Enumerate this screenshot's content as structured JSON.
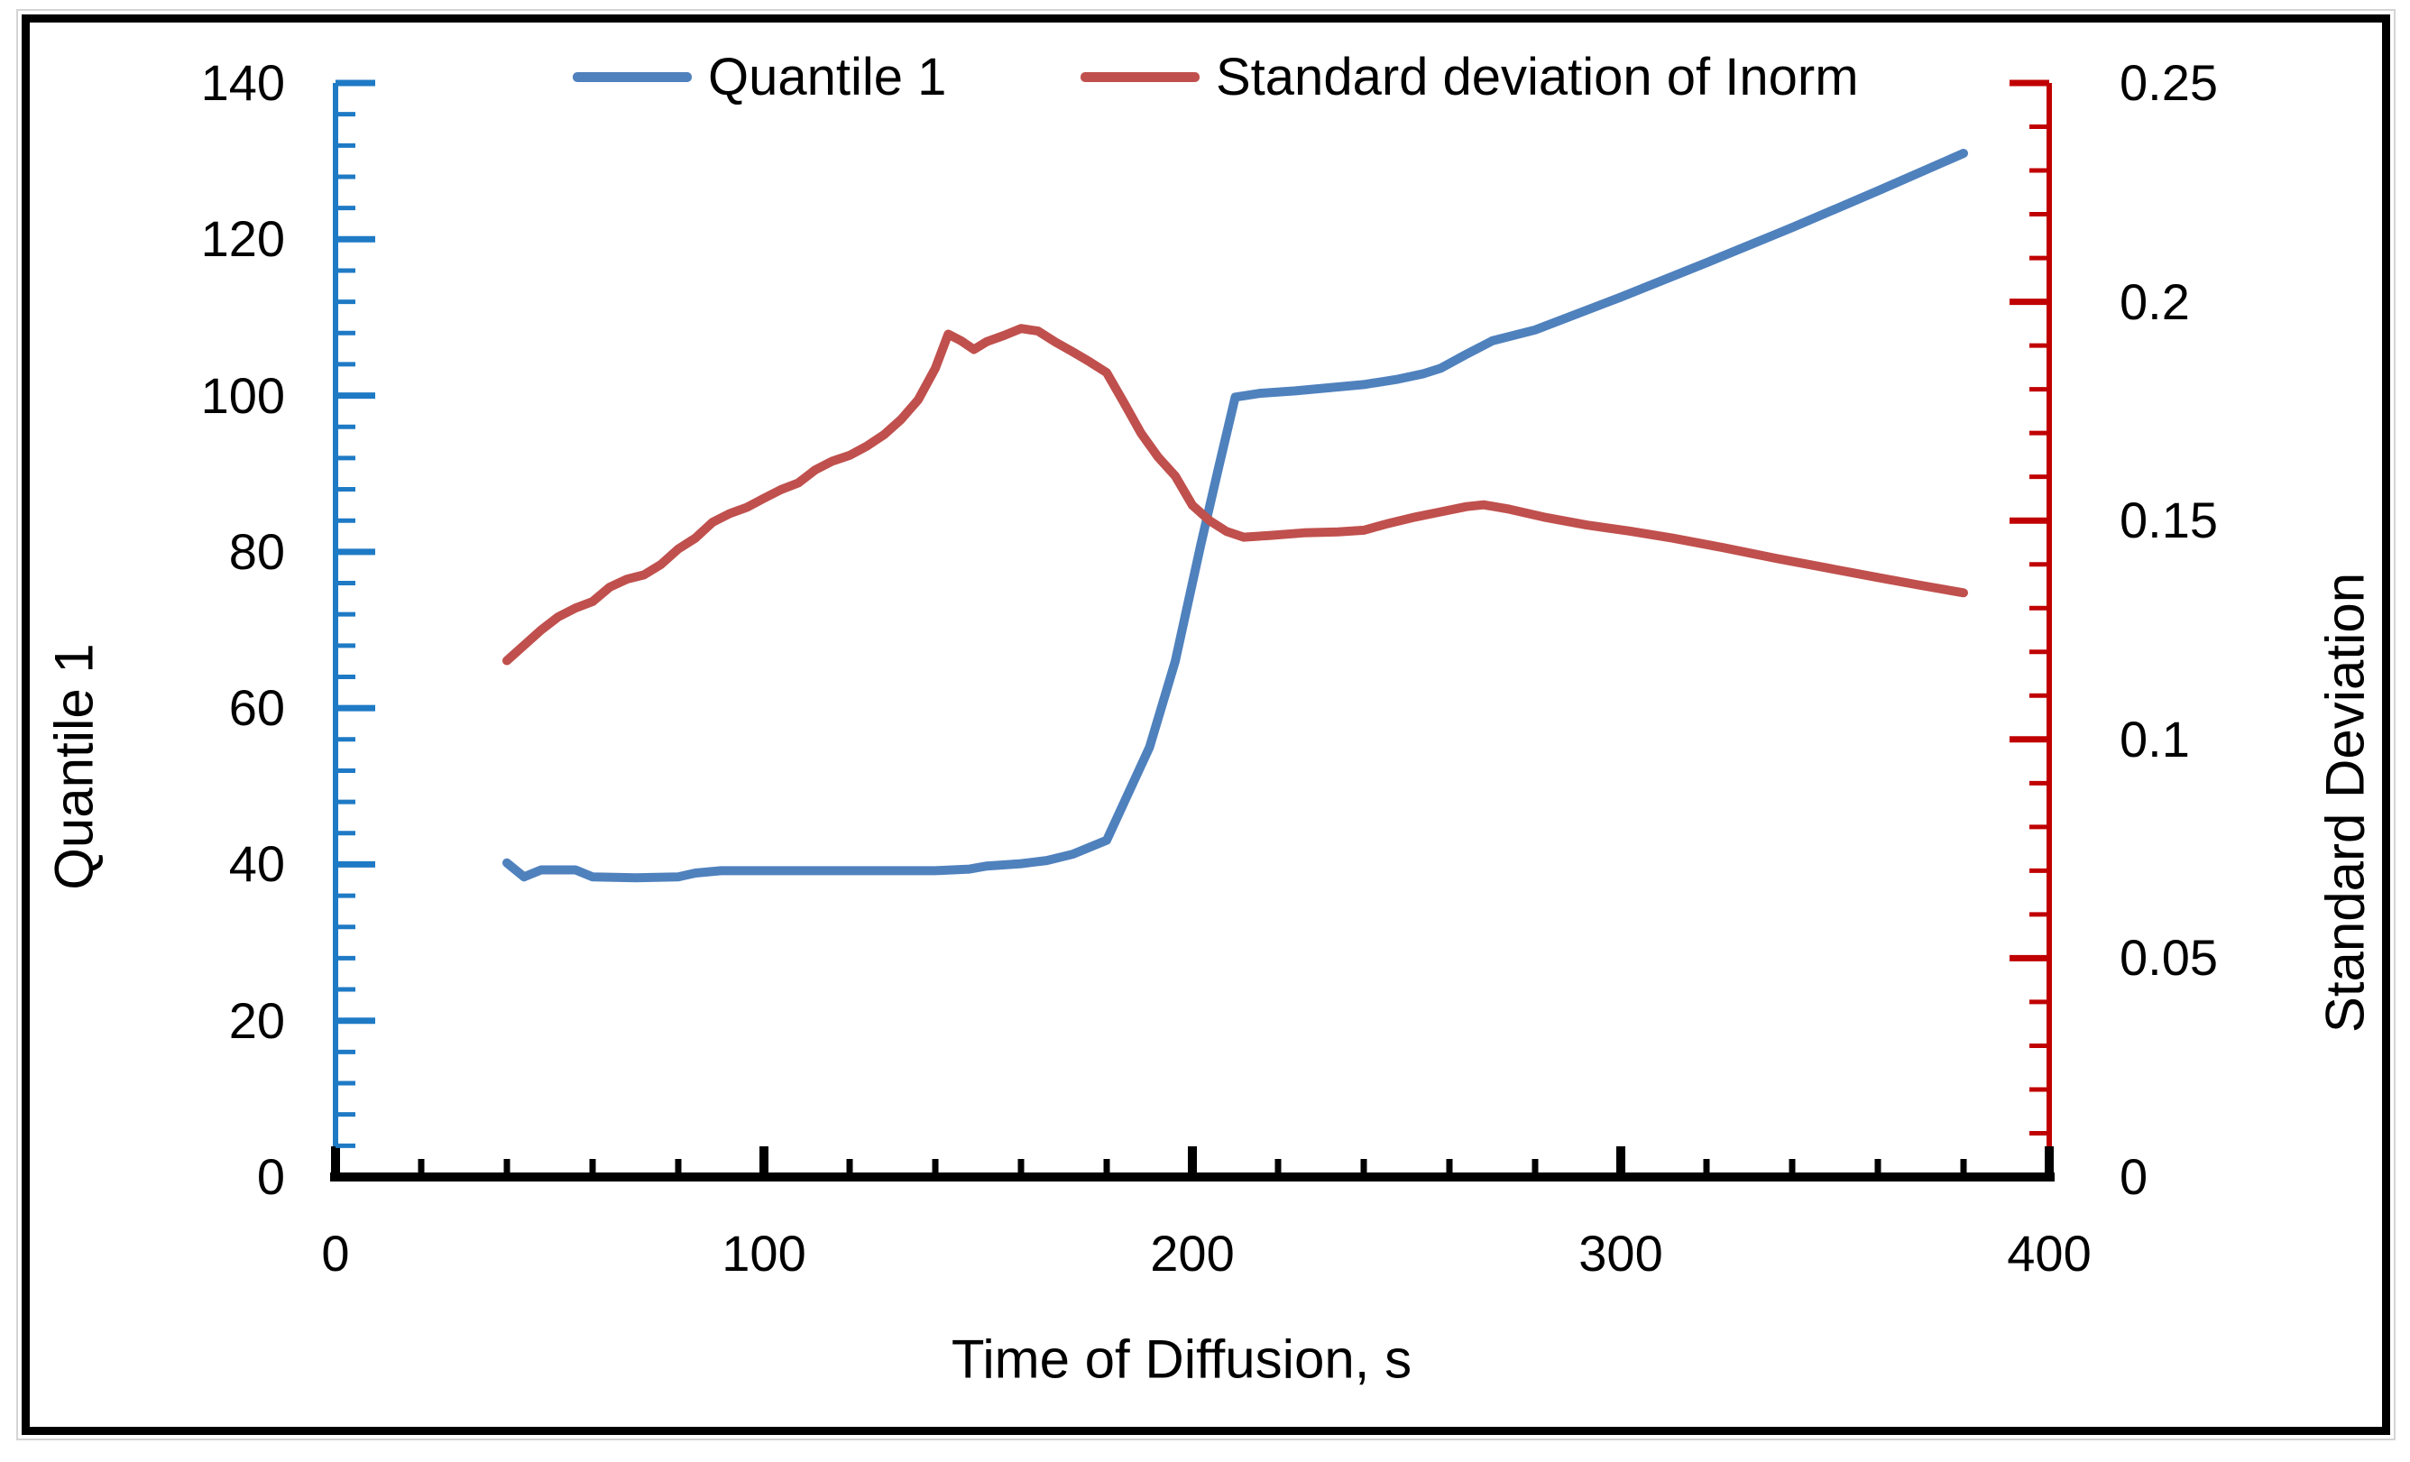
{
  "figure": {
    "background": "#ffffff",
    "border_color": "#000000",
    "outer_border_color": "#d4d4d4"
  },
  "legend": {
    "position": "top-center",
    "items": [
      {
        "label": "Quantile 1",
        "color": "#4F81BD"
      },
      {
        "label": "Standard deviation of Inorm",
        "color": "#C0504D"
      }
    ]
  },
  "chart_data": {
    "type": "line",
    "title": "",
    "xlabel": "Time of Diffusion, s",
    "ylabel_left": "Quantile 1",
    "ylabel_right": "Standard Deviation",
    "grid": "off",
    "x_axis": {
      "min": 0,
      "max": 400,
      "major": 100,
      "minor": 20,
      "color": "#000000",
      "tick_values": [
        0,
        100,
        200,
        300,
        400
      ],
      "tick_labels": [
        "0",
        "100",
        "200",
        "300",
        "400"
      ]
    },
    "y_left_axis": {
      "min": 0,
      "max": 140,
      "major": 20,
      "minor": 4,
      "color": "#1F7AC5",
      "tick_values": [
        0,
        20,
        40,
        60,
        80,
        100,
        120,
        140
      ],
      "tick_labels": [
        "0",
        "20",
        "40",
        "60",
        "80",
        "100",
        "120",
        "140"
      ]
    },
    "y_right_axis": {
      "min": 0,
      "max": 0.25,
      "major": 0.05,
      "minor": 0.01,
      "color": "#C00000",
      "tick_values": [
        0,
        0.05,
        0.1,
        0.15,
        0.2,
        0.25
      ],
      "tick_labels": [
        "0",
        "0.05",
        "0.1",
        "0.15",
        "0.2",
        "0.25"
      ]
    },
    "series": [
      {
        "name": "Quantile 1",
        "axis": "left",
        "color": "#4F81BD",
        "points": [
          [
            40,
            40.2
          ],
          [
            44,
            38.4
          ],
          [
            48,
            39.3
          ],
          [
            56,
            39.3
          ],
          [
            60,
            38.4
          ],
          [
            70,
            38.3
          ],
          [
            80,
            38.4
          ],
          [
            84,
            38.9
          ],
          [
            90,
            39.2
          ],
          [
            100,
            39.2
          ],
          [
            120,
            39.2
          ],
          [
            140,
            39.2
          ],
          [
            148,
            39.4
          ],
          [
            152,
            39.8
          ],
          [
            160,
            40.1
          ],
          [
            166,
            40.5
          ],
          [
            172,
            41.3
          ],
          [
            180,
            43.1
          ],
          [
            190,
            55
          ],
          [
            196,
            66
          ],
          [
            202,
            81
          ],
          [
            206,
            90.5
          ],
          [
            210,
            99.8
          ],
          [
            216,
            100.3
          ],
          [
            224,
            100.6
          ],
          [
            232,
            101
          ],
          [
            240,
            101.4
          ],
          [
            248,
            102.1
          ],
          [
            254,
            102.8
          ],
          [
            258,
            103.5
          ],
          [
            264,
            105.3
          ],
          [
            270,
            107
          ],
          [
            280,
            108.4
          ],
          [
            300,
            112.6
          ],
          [
            320,
            117
          ],
          [
            340,
            121.5
          ],
          [
            360,
            126.2
          ],
          [
            380,
            131
          ]
        ]
      },
      {
        "name": "Standard deviation of Inorm",
        "axis": "right",
        "color": "#C0504D",
        "points": [
          [
            40,
            0.118
          ],
          [
            44,
            0.1215
          ],
          [
            48,
            0.125
          ],
          [
            52,
            0.128
          ],
          [
            56,
            0.13
          ],
          [
            60,
            0.1315
          ],
          [
            64,
            0.1348
          ],
          [
            68,
            0.1366
          ],
          [
            72,
            0.1376
          ],
          [
            76,
            0.14
          ],
          [
            80,
            0.1435
          ],
          [
            84,
            0.146
          ],
          [
            88,
            0.1496
          ],
          [
            92,
            0.1516
          ],
          [
            96,
            0.153
          ],
          [
            100,
            0.1551
          ],
          [
            104,
            0.1571
          ],
          [
            108,
            0.1586
          ],
          [
            112,
            0.1616
          ],
          [
            116,
            0.1636
          ],
          [
            120,
            0.1649
          ],
          [
            124,
            0.167
          ],
          [
            128,
            0.1696
          ],
          [
            132,
            0.1731
          ],
          [
            136,
            0.1776
          ],
          [
            140,
            0.1848
          ],
          [
            143,
            0.1926
          ],
          [
            146,
            0.1911
          ],
          [
            149,
            0.1891
          ],
          [
            152,
            0.1909
          ],
          [
            156,
            0.1923
          ],
          [
            160,
            0.1939
          ],
          [
            164,
            0.1933
          ],
          [
            168,
            0.1908
          ],
          [
            172,
            0.1886
          ],
          [
            176,
            0.1863
          ],
          [
            180,
            0.1838
          ],
          [
            184,
            0.177
          ],
          [
            188,
            0.17
          ],
          [
            192,
            0.1645
          ],
          [
            196,
            0.1602
          ],
          [
            200,
            0.1535
          ],
          [
            204,
            0.15
          ],
          [
            208,
            0.1475
          ],
          [
            212,
            0.1462
          ],
          [
            218,
            0.1466
          ],
          [
            226,
            0.1472
          ],
          [
            234,
            0.1474
          ],
          [
            240,
            0.1478
          ],
          [
            246,
            0.1494
          ],
          [
            252,
            0.1508
          ],
          [
            258,
            0.152
          ],
          [
            264,
            0.1532
          ],
          [
            268,
            0.1536
          ],
          [
            274,
            0.1526
          ],
          [
            282,
            0.1508
          ],
          [
            292,
            0.149
          ],
          [
            302,
            0.1476
          ],
          [
            312,
            0.146
          ],
          [
            324,
            0.1438
          ],
          [
            336,
            0.1414
          ],
          [
            348,
            0.1392
          ],
          [
            360,
            0.137
          ],
          [
            370,
            0.1352
          ],
          [
            380,
            0.1335
          ]
        ]
      }
    ]
  }
}
